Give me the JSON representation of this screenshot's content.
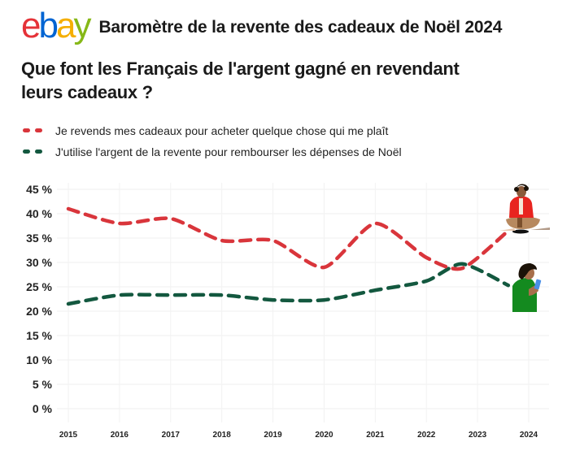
{
  "header": {
    "logo_letters": [
      {
        "char": "e",
        "color": "#e53238"
      },
      {
        "char": "b",
        "color": "#0064d2"
      },
      {
        "char": "a",
        "color": "#f5af02"
      },
      {
        "char": "y",
        "color": "#86b817"
      }
    ],
    "title": "Baromètre de la revente des cadeaux de Noël 2024"
  },
  "question": {
    "line1": "Que font les Français de l'argent gagné en revendant",
    "line2": "leurs cadeaux ?"
  },
  "illustrations": [
    {
      "icon": "person-sitting-cross-legged-icon",
      "series": "Je revends mes cadeaux pour acheter quelque chose qui me plaît"
    },
    {
      "icon": "person-using-phone-icon",
      "series": "J'utilise l'argent de la revente pour rembourser les dépenses de Noël"
    }
  ],
  "chart_data": {
    "type": "line",
    "title": "Que font les Français de l'argent gagné en revendant leurs cadeaux ?",
    "xlabel": "",
    "ylabel": "",
    "x_ticks": [
      "2015",
      "2016",
      "2017",
      "2018",
      "2019",
      "2020",
      "2021",
      "2022",
      "2023",
      "2024"
    ],
    "y_ticks": [
      "0 %",
      "5 %",
      "10 %",
      "15 %",
      "20 %",
      "25 %",
      "30 %",
      "35 %",
      "40 %",
      "45 %"
    ],
    "ylim": [
      0,
      45
    ],
    "xlim": [
      2015,
      2024
    ],
    "grid": true,
    "legend_position": "top-left",
    "series": [
      {
        "name": "Je revends mes cadeaux pour acheter quelque chose qui me plaît",
        "color": "#d9353b",
        "style": "dashed",
        "points": [
          {
            "x": 2015,
            "y": 41
          },
          {
            "x": 2016,
            "y": 38
          },
          {
            "x": 2017,
            "y": 39
          },
          {
            "x": 2018,
            "y": 34.5
          },
          {
            "x": 2019,
            "y": 34.5
          },
          {
            "x": 2020,
            "y": 29
          },
          {
            "x": 2021,
            "y": 38
          },
          {
            "x": 2022,
            "y": 31
          },
          {
            "x": 2022.7,
            "y": 28.8
          },
          {
            "x": 2023.6,
            "y": 36.5
          }
        ]
      },
      {
        "name": "J'utilise l'argent de la revente pour rembourser les dépenses de Noël",
        "color": "#13583f",
        "style": "dashed",
        "points": [
          {
            "x": 2015,
            "y": 21.5
          },
          {
            "x": 2016,
            "y": 23.3
          },
          {
            "x": 2017,
            "y": 23.3
          },
          {
            "x": 2018,
            "y": 23.3
          },
          {
            "x": 2019,
            "y": 22.3
          },
          {
            "x": 2020,
            "y": 22.3
          },
          {
            "x": 2021,
            "y": 24.3
          },
          {
            "x": 2022,
            "y": 26.2
          },
          {
            "x": 2022.7,
            "y": 29.7
          },
          {
            "x": 2023.6,
            "y": 25.3
          }
        ]
      }
    ]
  }
}
